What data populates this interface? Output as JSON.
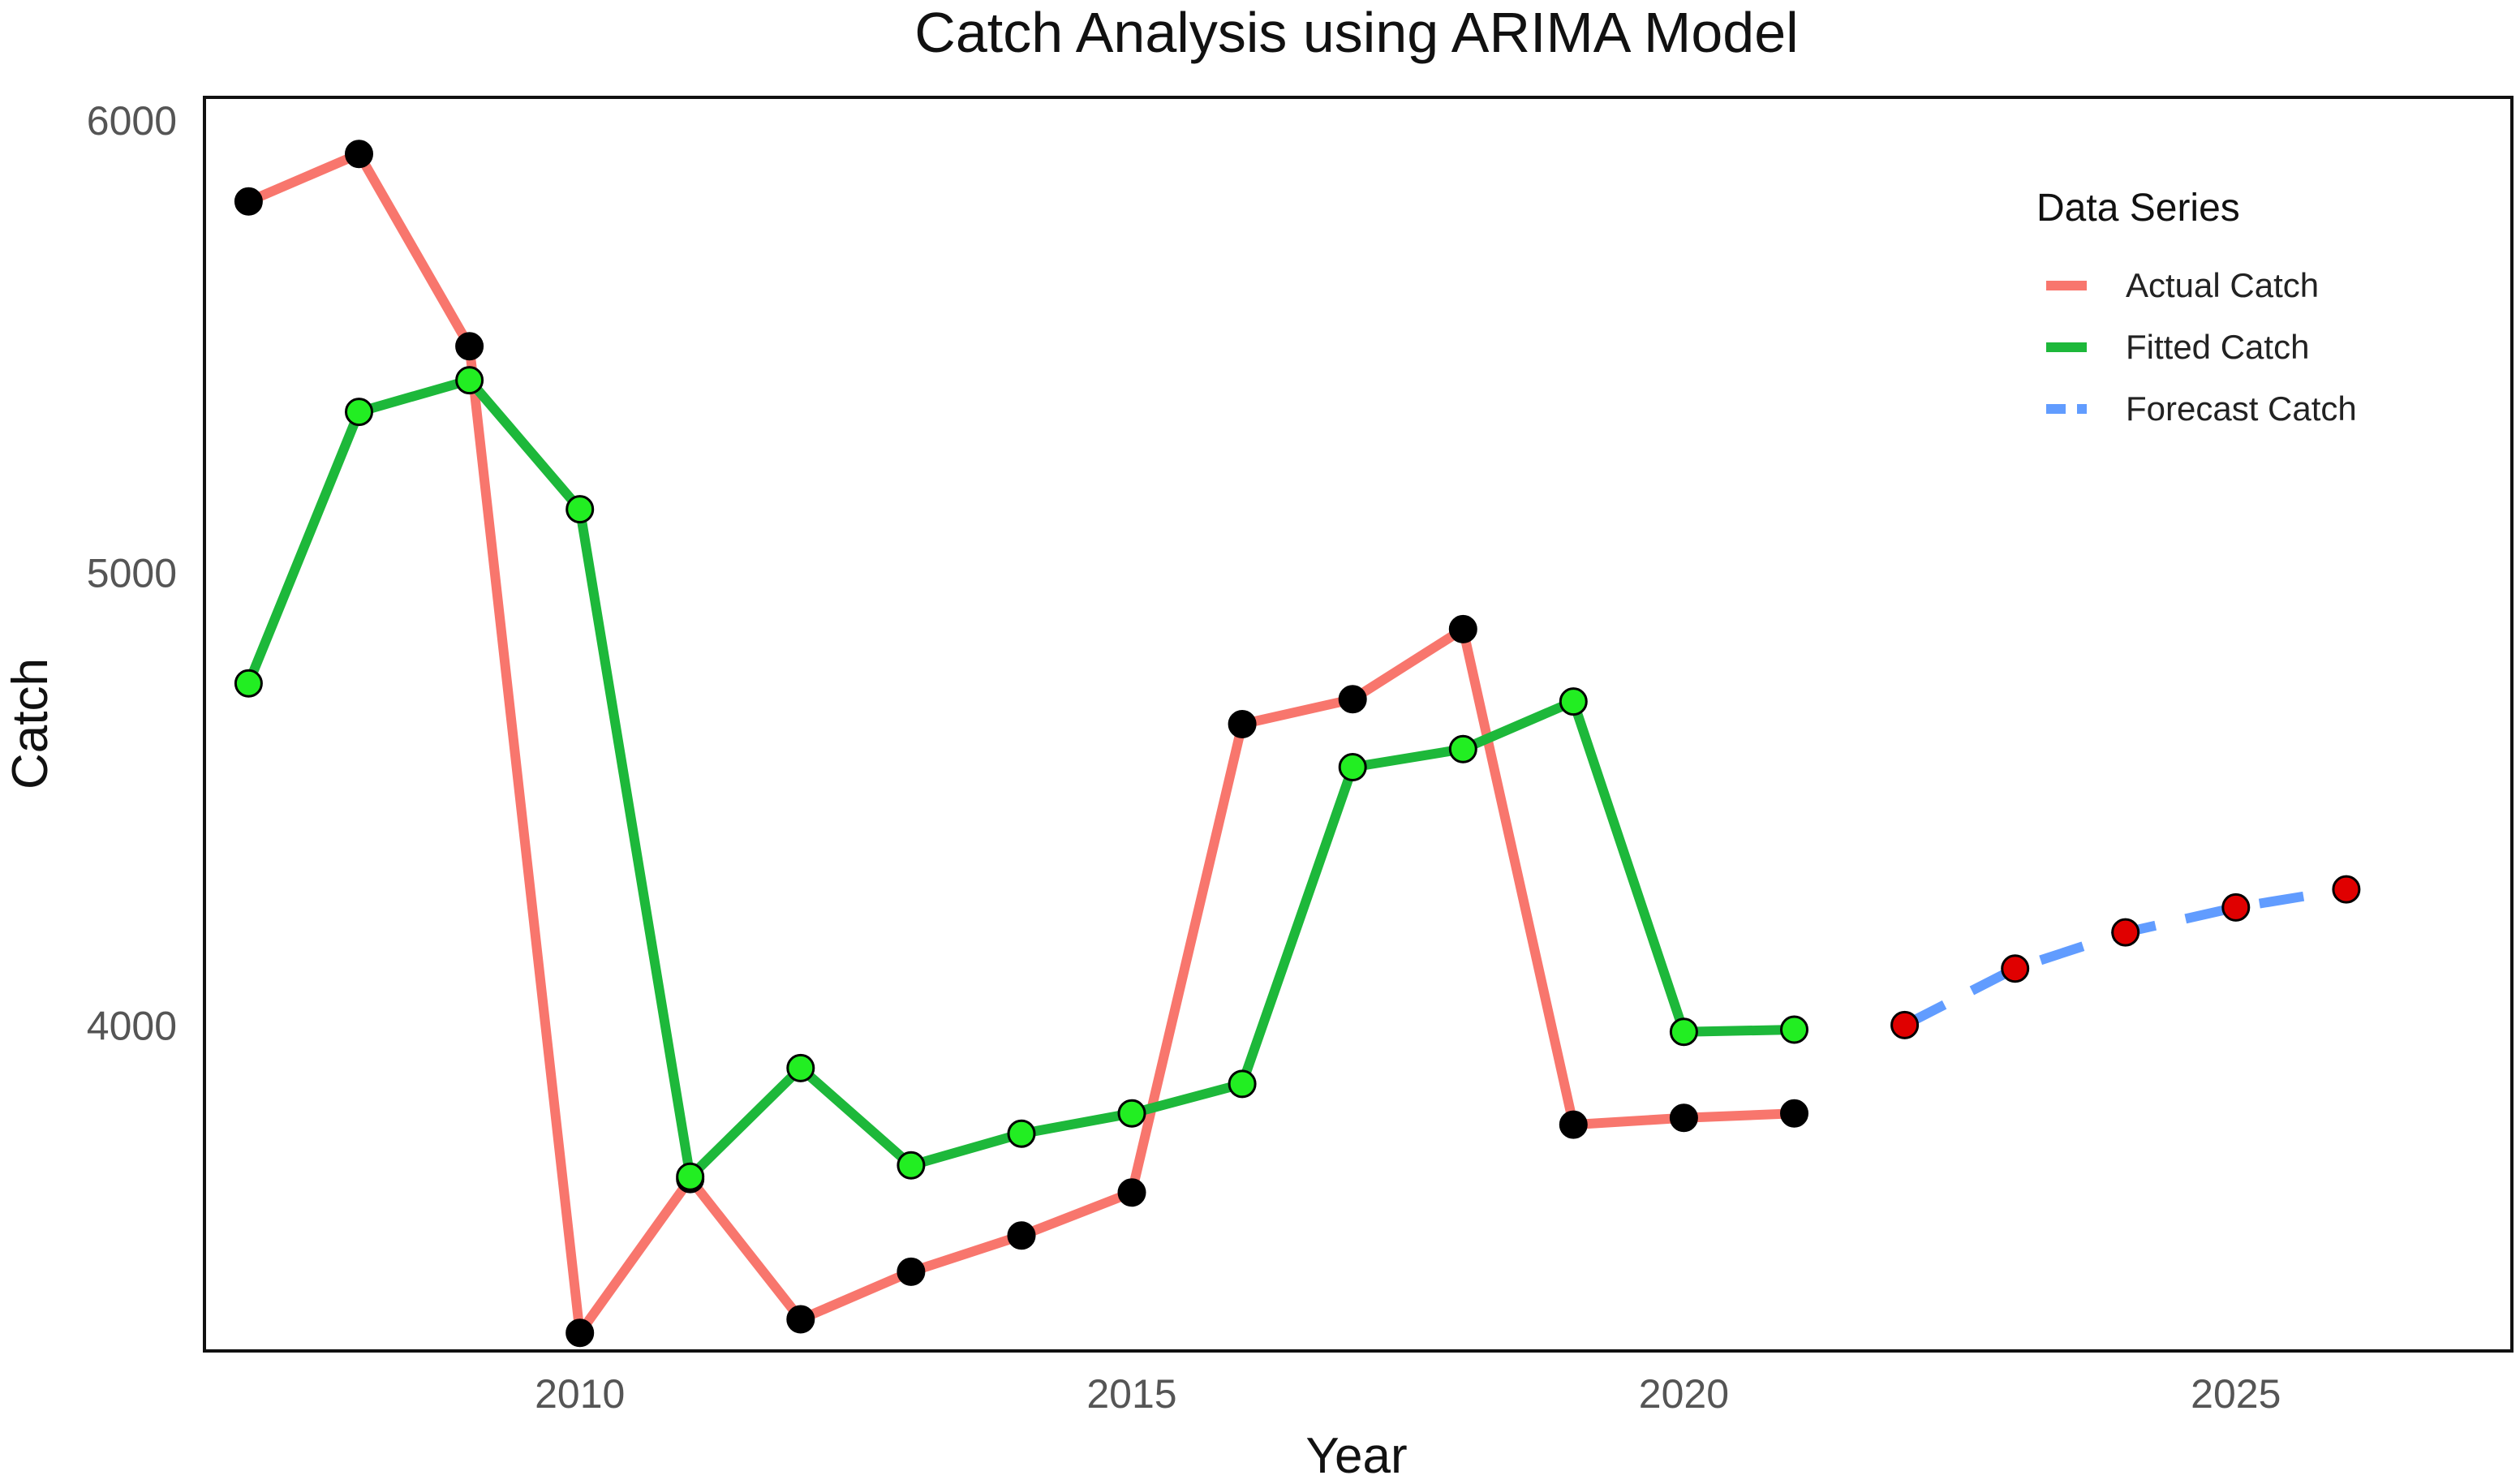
{
  "chart_data": {
    "type": "line",
    "title": "Catch Analysis using ARIMA Model",
    "xlabel": "Year",
    "ylabel": "Catch",
    "xlim": [
      2006.6,
      2027.5
    ],
    "ylim": [
      3280,
      6050
    ],
    "x_ticks": [
      2010,
      2015,
      2020,
      2025
    ],
    "y_ticks": [
      4000,
      5000,
      6000
    ],
    "grid": false,
    "legend": {
      "title": "Data Series",
      "position": "top-right"
    },
    "series": [
      {
        "name": "Actual Catch",
        "color": "#f8766d",
        "marker_color": "#000000",
        "style": "solid",
        "x": [
          2007,
          2008,
          2009,
          2010,
          2011,
          2012,
          2013,
          2014,
          2015,
          2016,
          2017,
          2018,
          2019,
          2020,
          2021
        ],
        "values": [
          5820,
          5925,
          5500,
          3320,
          3660,
          3350,
          3455,
          3535,
          3630,
          4665,
          4720,
          4875,
          3780,
          3795,
          3805
        ]
      },
      {
        "name": "Fitted Catch",
        "color": "#1db83a",
        "marker_color": "#22ee22",
        "style": "solid",
        "x": [
          2007,
          2008,
          2009,
          2010,
          2011,
          2012,
          2013,
          2014,
          2015,
          2016,
          2017,
          2018,
          2019,
          2020,
          2021
        ],
        "values": [
          4755,
          5355,
          5425,
          5140,
          3665,
          3905,
          3690,
          3760,
          3805,
          3870,
          4570,
          4610,
          4715,
          3985,
          3990
        ]
      },
      {
        "name": "Forecast Catch",
        "color": "#619cff",
        "marker_color": "#e00000",
        "style": "dashed",
        "x": [
          2022,
          2023,
          2024,
          2025,
          2026
        ],
        "values": [
          4000,
          4125,
          4205,
          4260,
          4300
        ]
      }
    ]
  }
}
